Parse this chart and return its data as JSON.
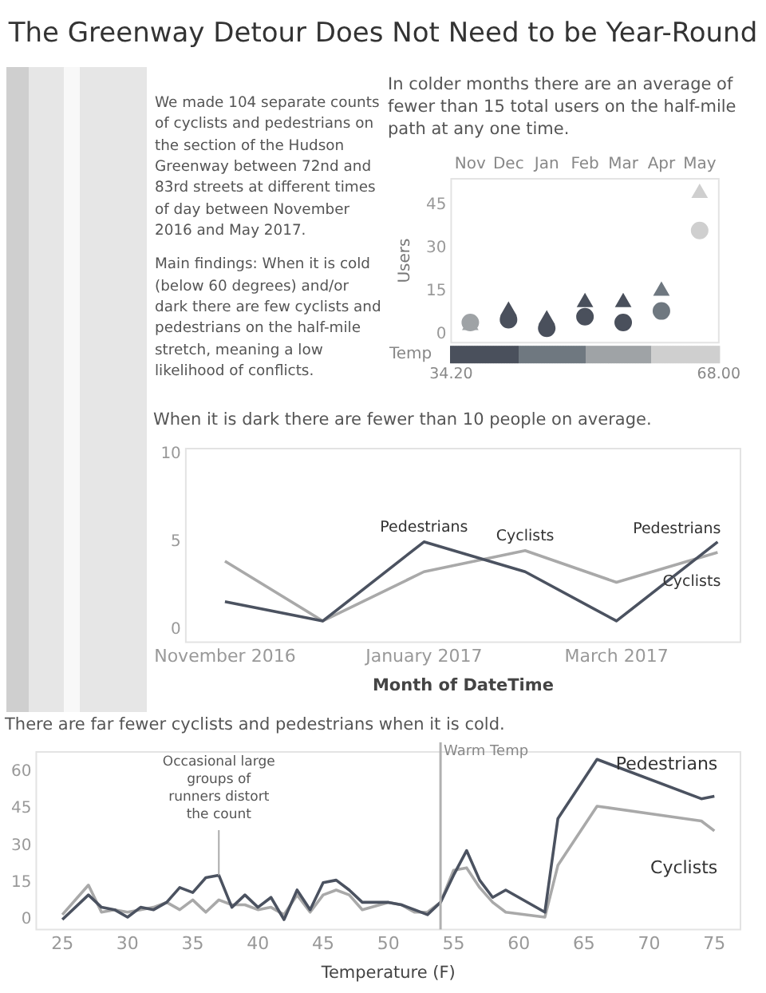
{
  "chart_data": [
    {
      "type": "other",
      "title": "The Greenway Detour Does Not Need to be Year-Round",
      "annotations": [
        "We made 104 separate counts of cyclists and pedestrians on the section of the Hudson Greenway between 72nd and 83rd streets at different times of day between November 2016 and May 2017.",
        "Main findings: When it is cold (below 60 degrees) and/or dark there are few cyclists and pedestrians on the half-mile stretch, meaning a low likelihood of conflicts."
      ]
    },
    {
      "type": "scatter",
      "title": "In colder months there are an average of fewer than 15 total users on the half-mile path at any one time.",
      "ylabel": "Users",
      "categories": [
        "Nov",
        "Dec",
        "Jan",
        "Feb",
        "Mar",
        "Apr",
        "May"
      ],
      "series": [
        {
          "marker": "triangle",
          "values": [
            3,
            8,
            5,
            11,
            11,
            15,
            49
          ],
          "colors": [
            "#9fa3a6",
            "#4a505c",
            "#4a505c",
            "#4a505c",
            "#4a505c",
            "#6f7880",
            "#cfcfcf"
          ]
        },
        {
          "marker": "circle",
          "values": [
            4,
            5,
            2,
            6,
            4,
            8,
            36
          ],
          "colors": [
            "#9fa3a6",
            "#4a505c",
            "#4a505c",
            "#4a505c",
            "#4a505c",
            "#6f7880",
            "#cfcfcf"
          ]
        }
      ],
      "ylim": [
        -3,
        54
      ],
      "yticks": [
        0,
        15,
        30,
        45
      ],
      "clabel": "Temp",
      "clim": [
        34.2,
        68
      ],
      "cticks": [
        {
          "value": 34.2,
          "label": "34.20"
        },
        {
          "value": 68,
          "label": "68.00"
        }
      ]
    },
    {
      "type": "line",
      "title": "When it is dark there are fewer than 10 people on average.",
      "xlabel": "Month of DateTime",
      "x": [
        "2016-11",
        "2016-12",
        "2017-01",
        "2017-02",
        "2017-03",
        "2017-04"
      ],
      "series": [
        {
          "name": "Pedestrians",
          "color": "#4b5260",
          "values": [
            1.6,
            0.5,
            5,
            3.3,
            0.5,
            5
          ]
        },
        {
          "name": "Cyclists",
          "color": "#a9a9a9",
          "values": [
            3.9,
            0.5,
            3.3,
            4.5,
            2.7,
            4.4
          ]
        }
      ],
      "xlim": [
        "2016-10-20",
        "2017-04-08"
      ],
      "xticks": [
        {
          "value": "2016-11",
          "label": "November 2016"
        },
        {
          "value": "2017-01",
          "label": "January 2017"
        },
        {
          "value": "2017-03",
          "label": "March 2017"
        }
      ],
      "ylim": [
        -0.7,
        10.3
      ],
      "yticks": [
        0,
        5,
        10
      ],
      "annotations": [
        {
          "text": "Pedestrians",
          "x": "2017-01",
          "y": 5
        },
        {
          "text": "Cyclists",
          "x": "2017-02",
          "y": 4.5
        }
      ]
    },
    {
      "type": "line",
      "title": "There are far fewer cyclists and pedestrians when it is cold.",
      "xlabel": "Temperature (F)",
      "x": [
        25,
        27,
        28,
        29,
        30,
        31,
        32,
        33,
        34,
        35,
        36,
        37,
        38,
        39,
        40,
        41,
        42,
        43,
        44,
        45,
        46,
        47,
        48,
        50,
        51,
        52,
        53,
        54,
        55,
        56,
        57,
        58,
        59,
        62,
        63,
        66,
        74,
        75
      ],
      "series": [
        {
          "name": "Pedestrians",
          "color": "#4b5260",
          "values": [
            0,
            10,
            5,
            4,
            1,
            5,
            4,
            7,
            13,
            11,
            17,
            18,
            5,
            10,
            5,
            9,
            0,
            12,
            4,
            15,
            16,
            12,
            7,
            7,
            6,
            4,
            2,
            7,
            18,
            28,
            16,
            9,
            12,
            3,
            41,
            65,
            49,
            50
          ]
        },
        {
          "name": "Cyclists",
          "color": "#a9a9a9",
          "values": [
            2,
            14,
            3,
            4,
            3,
            4,
            5,
            7,
            4,
            8,
            3,
            8,
            6,
            6,
            4,
            5,
            2,
            10,
            3,
            10,
            12,
            10,
            4,
            7,
            6,
            3,
            3,
            7,
            20,
            21,
            13,
            7,
            3,
            1,
            22,
            46,
            40,
            36
          ]
        }
      ],
      "xlim": [
        23,
        77
      ],
      "xticks": [
        25,
        30,
        35,
        40,
        45,
        50,
        55,
        60,
        65,
        70,
        75
      ],
      "ylim": [
        -4,
        68
      ],
      "yticks": [
        0,
        15,
        30,
        45,
        60
      ],
      "ref_lines": [
        {
          "axis": "x",
          "value": 54,
          "label": "Warm Temp",
          "color": "#b0b0b0"
        }
      ],
      "annotations": [
        {
          "text": "Occasional large groups of runners distort the count",
          "x": 37,
          "y": 18
        }
      ]
    }
  ]
}
